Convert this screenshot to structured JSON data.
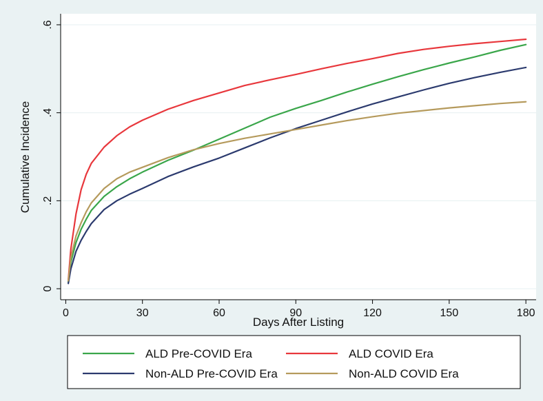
{
  "chart_data": {
    "type": "line",
    "xlabel": "Days After Listing",
    "ylabel": "Cumulative Incidence",
    "xlim": [
      -2,
      184
    ],
    "ylim": [
      -0.025,
      0.625
    ],
    "x_ticks": [
      0,
      30,
      60,
      90,
      120,
      150,
      180
    ],
    "x_tick_labels": [
      "0",
      "30",
      "60",
      "90",
      "120",
      "150",
      "180"
    ],
    "y_ticks": [
      0,
      0.2,
      0.4,
      0.6
    ],
    "y_tick_labels": [
      "0",
      ".2",
      ".4",
      ".6"
    ],
    "grid": "horizontal",
    "legend_position": "bottom",
    "colors": {
      "background": "#eaf2f3",
      "plot_background": "#ffffff",
      "grid": "#eaf2f3"
    },
    "x": [
      1,
      2,
      4,
      6,
      8,
      10,
      15,
      20,
      25,
      30,
      40,
      50,
      60,
      70,
      80,
      90,
      100,
      110,
      120,
      130,
      140,
      150,
      160,
      170,
      180
    ],
    "series": [
      {
        "name": "ALD Pre-COVID Era",
        "color": "#3aa64a",
        "values": [
          0.015,
          0.06,
          0.105,
          0.135,
          0.158,
          0.178,
          0.21,
          0.232,
          0.25,
          0.265,
          0.292,
          0.315,
          0.34,
          0.365,
          0.39,
          0.41,
          0.428,
          0.447,
          0.465,
          0.482,
          0.498,
          0.513,
          0.527,
          0.542,
          0.555
        ]
      },
      {
        "name": "ALD COVID Era",
        "color": "#e8373c",
        "values": [
          0.02,
          0.09,
          0.17,
          0.225,
          0.26,
          0.285,
          0.322,
          0.348,
          0.368,
          0.383,
          0.408,
          0.428,
          0.445,
          0.462,
          0.475,
          0.487,
          0.5,
          0.512,
          0.523,
          0.535,
          0.544,
          0.551,
          0.557,
          0.562,
          0.567
        ]
      },
      {
        "name": "Non-ALD Pre-COVID Era",
        "color": "#2b3a6e",
        "values": [
          0.012,
          0.045,
          0.085,
          0.11,
          0.13,
          0.148,
          0.18,
          0.2,
          0.215,
          0.228,
          0.255,
          0.277,
          0.297,
          0.32,
          0.343,
          0.364,
          0.383,
          0.402,
          0.42,
          0.436,
          0.452,
          0.467,
          0.48,
          0.492,
          0.503
        ]
      },
      {
        "name": "Non-ALD COVID Era",
        "color": "#b59a5c",
        "values": [
          0.018,
          0.07,
          0.12,
          0.15,
          0.175,
          0.195,
          0.228,
          0.25,
          0.265,
          0.276,
          0.298,
          0.316,
          0.33,
          0.342,
          0.352,
          0.362,
          0.372,
          0.382,
          0.391,
          0.399,
          0.405,
          0.411,
          0.416,
          0.421,
          0.425
        ]
      }
    ]
  }
}
